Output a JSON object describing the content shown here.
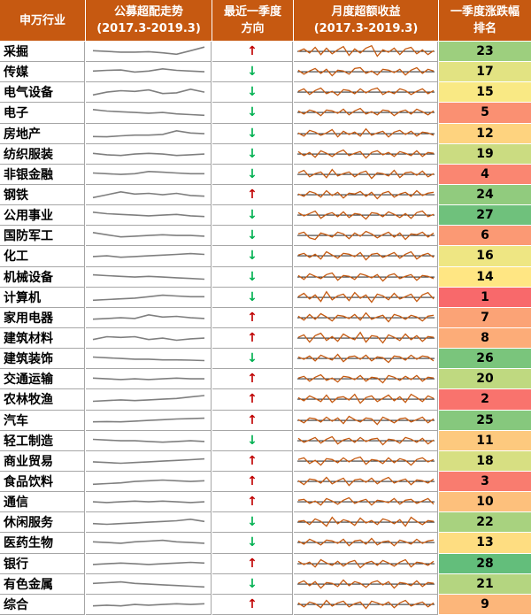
{
  "header": {
    "col_industry": "申万行业",
    "col_trend_line1": "公募超配走势",
    "col_trend_line2": "(2017.3-2019.3)",
    "col_dir_line1": "最近一季度",
    "col_dir_line2": "方向",
    "col_excess_line1": "月度超额收益",
    "col_excess_line2": "(2017.3-2019.3)",
    "col_rank_line1": "一季度涨跌幅",
    "col_rank_line2": "排名"
  },
  "colors": {
    "header_bg": "#c65911",
    "up_arrow": "#c00000",
    "down_arrow": "#00b050",
    "trend_line": "#7f7f7f",
    "excess_line": "#c55a11",
    "rank_best": "#63be7b",
    "rank_mid": "#ffeb84",
    "rank_worst": "#f8696b"
  },
  "chart_data": {
    "type": "table",
    "arrows": {
      "up": "↑",
      "down": "↓"
    },
    "rank_range": [
      1,
      28
    ],
    "rows": [
      {
        "name": "采掘",
        "dir": "up",
        "rank": "23",
        "trend": [
          0.55,
          0.5,
          0.45,
          0.45,
          0.48,
          0.4,
          0.3,
          0.55,
          0.8
        ],
        "excess": [
          0.0,
          0.3,
          -0.2,
          0.5,
          -0.4,
          0.4,
          -0.3,
          0.2,
          0.6,
          -0.5,
          0.3,
          -0.2,
          0.4,
          0.7,
          -0.6,
          0.2,
          -0.1,
          0.4,
          -0.4,
          0.3,
          0.5,
          -0.3,
          0.2,
          -0.4,
          0.1
        ]
      },
      {
        "name": "传媒",
        "dir": "down",
        "rank": "17",
        "trend": [
          0.55,
          0.6,
          0.62,
          0.48,
          0.55,
          0.7,
          0.6,
          0.55,
          0.5
        ],
        "excess": [
          0.2,
          -0.3,
          0.1,
          0.4,
          -0.2,
          0.3,
          -0.5,
          0.2,
          0.1,
          -0.3,
          0.4,
          0.5,
          -0.2,
          0.1,
          -0.4,
          0.3,
          0.2,
          -0.1,
          0.3,
          -0.4,
          0.2,
          0.5,
          -0.2,
          0.3,
          0.1
        ]
      },
      {
        "name": "电气设备",
        "dir": "down",
        "rank": "15",
        "trend": [
          0.3,
          0.5,
          0.6,
          0.55,
          0.65,
          0.4,
          0.45,
          0.7,
          0.5
        ],
        "excess": [
          0.1,
          0.4,
          -0.3,
          0.2,
          0.5,
          -0.2,
          0.1,
          -0.4,
          0.3,
          0.2,
          -0.2,
          0.4,
          -0.1,
          0.3,
          0.5,
          -0.3,
          0.1,
          -0.2,
          0.4,
          0.2,
          -0.3,
          0.1,
          0.4,
          -0.2,
          0.2
        ]
      },
      {
        "name": "电子",
        "dir": "down",
        "rank": "5",
        "trend": [
          0.7,
          0.6,
          0.55,
          0.5,
          0.45,
          0.5,
          0.4,
          0.35,
          0.3
        ],
        "excess": [
          0.2,
          -0.2,
          0.3,
          0.1,
          -0.4,
          0.3,
          0.2,
          -0.1,
          0.4,
          -0.3,
          0.2,
          0.5,
          -0.2,
          0.1,
          -0.3,
          0.3,
          0.2,
          -0.4,
          0.1,
          0.3,
          -0.2,
          0.4,
          0.1,
          -0.3,
          0.2
        ]
      },
      {
        "name": "房地产",
        "dir": "down",
        "rank": "12",
        "trend": [
          0.3,
          0.28,
          0.35,
          0.4,
          0.4,
          0.45,
          0.7,
          0.55,
          0.5
        ],
        "excess": [
          0.1,
          -0.3,
          0.4,
          0.2,
          -0.2,
          0.1,
          0.5,
          -0.4,
          0.3,
          -0.1,
          0.2,
          -0.3,
          0.6,
          -0.2,
          0.1,
          0.3,
          -0.4,
          0.2,
          0.4,
          -0.1,
          0.3,
          -0.3,
          0.2,
          0.1,
          -0.2
        ]
      },
      {
        "name": "纺织服装",
        "dir": "down",
        "rank": "19",
        "trend": [
          0.55,
          0.45,
          0.4,
          0.5,
          0.55,
          0.5,
          0.4,
          0.45,
          0.5
        ],
        "excess": [
          0.3,
          -0.2,
          0.2,
          -0.4,
          0.4,
          0.1,
          -0.3,
          0.2,
          0.5,
          -0.2,
          0.1,
          0.3,
          -0.5,
          0.2,
          0.4,
          -0.1,
          0.2,
          -0.3,
          0.3,
          0.1,
          -0.2,
          0.4,
          -0.3,
          0.2,
          0.1
        ]
      },
      {
        "name": "非银金融",
        "dir": "down",
        "rank": "4",
        "trend": [
          0.6,
          0.55,
          0.5,
          0.55,
          0.7,
          0.65,
          0.6,
          0.55,
          0.55
        ],
        "excess": [
          0.2,
          0.5,
          -0.3,
          0.1,
          0.3,
          -0.4,
          0.6,
          -0.2,
          0.1,
          0.3,
          -0.3,
          0.2,
          0.4,
          -0.5,
          0.2,
          0.1,
          -0.2,
          0.5,
          -0.4,
          0.2,
          0.3,
          -0.1,
          0.4,
          -0.3,
          0.1
        ]
      },
      {
        "name": "钢铁",
        "dir": "up",
        "rank": "24",
        "trend": [
          0.3,
          0.5,
          0.7,
          0.55,
          0.6,
          0.5,
          0.6,
          0.45,
          0.4
        ],
        "excess": [
          0.1,
          -0.2,
          0.4,
          0.2,
          -0.3,
          0.5,
          -0.1,
          0.3,
          -0.4,
          0.2,
          0.1,
          0.4,
          -0.2,
          0.3,
          -0.5,
          0.2,
          0.4,
          -0.3,
          0.1,
          0.3,
          -0.2,
          0.5,
          -0.1,
          0.2,
          0.3
        ]
      },
      {
        "name": "公用事业",
        "dir": "down",
        "rank": "27",
        "trend": [
          0.7,
          0.6,
          0.55,
          0.5,
          0.45,
          0.5,
          0.55,
          0.45,
          0.4
        ],
        "excess": [
          0.3,
          -0.1,
          0.2,
          0.5,
          -0.4,
          0.1,
          0.3,
          -0.2,
          0.4,
          -0.3,
          0.2,
          0.1,
          -0.5,
          0.3,
          0.2,
          -0.2,
          0.4,
          0.1,
          -0.3,
          0.2,
          -0.4,
          0.3,
          0.5,
          -0.2,
          0.1
        ]
      },
      {
        "name": "国防军工",
        "dir": "down",
        "rank": "6",
        "trend": [
          0.7,
          0.55,
          0.4,
          0.45,
          0.5,
          0.55,
          0.5,
          0.5,
          0.45
        ],
        "excess": [
          0.2,
          0.4,
          -0.3,
          -0.5,
          0.3,
          0.1,
          -0.2,
          0.4,
          0.2,
          -0.4,
          0.3,
          -0.1,
          0.5,
          0.2,
          -0.3,
          0.1,
          0.4,
          -0.2,
          0.3,
          -0.5,
          0.2,
          0.1,
          0.4,
          -0.2,
          0.3
        ]
      },
      {
        "name": "化工",
        "dir": "down",
        "rank": "16",
        "trend": [
          0.45,
          0.5,
          0.4,
          0.45,
          0.5,
          0.55,
          0.6,
          0.65,
          0.6
        ],
        "excess": [
          0.1,
          0.3,
          -0.2,
          0.2,
          -0.4,
          0.5,
          0.1,
          -0.3,
          0.3,
          0.2,
          -0.1,
          0.4,
          -0.5,
          0.2,
          0.3,
          -0.2,
          0.1,
          0.4,
          -0.3,
          0.2,
          0.5,
          -0.4,
          0.1,
          0.3,
          -0.2
        ]
      },
      {
        "name": "机械设备",
        "dir": "down",
        "rank": "14",
        "trend": [
          0.65,
          0.6,
          0.55,
          0.5,
          0.55,
          0.5,
          0.45,
          0.4,
          0.35
        ],
        "excess": [
          0.2,
          -0.3,
          0.4,
          0.1,
          -0.2,
          0.3,
          0.5,
          -0.4,
          0.2,
          0.1,
          -0.3,
          0.4,
          0.2,
          -0.1,
          0.3,
          -0.5,
          0.2,
          0.4,
          -0.2,
          0.1,
          0.3,
          -0.4,
          0.2,
          0.1,
          -0.2
        ]
      },
      {
        "name": "计算机",
        "dir": "down",
        "rank": "1",
        "trend": [
          0.3,
          0.35,
          0.4,
          0.45,
          0.55,
          0.65,
          0.6,
          0.55,
          0.55
        ],
        "excess": [
          0.1,
          0.5,
          -0.2,
          0.3,
          -0.5,
          0.7,
          -0.3,
          0.2,
          0.4,
          -0.4,
          0.6,
          -0.1,
          0.3,
          -0.6,
          0.4,
          0.2,
          -0.3,
          0.5,
          -0.2,
          0.1,
          0.4,
          -0.5,
          0.3,
          0.6,
          -0.2
        ]
      },
      {
        "name": "家用电器",
        "dir": "up",
        "rank": "7",
        "trend": [
          0.4,
          0.45,
          0.5,
          0.45,
          0.7,
          0.55,
          0.6,
          0.5,
          0.45
        ],
        "excess": [
          0.2,
          -0.3,
          0.4,
          -0.2,
          0.5,
          0.1,
          -0.4,
          0.3,
          0.2,
          -0.1,
          0.4,
          -0.3,
          0.6,
          -0.2,
          0.1,
          0.3,
          -0.5,
          0.4,
          0.2,
          -0.2,
          0.3,
          0.1,
          -0.4,
          0.2,
          0.3
        ]
      },
      {
        "name": "建筑材料",
        "dir": "up",
        "rank": "8",
        "trend": [
          0.4,
          0.6,
          0.55,
          0.6,
          0.4,
          0.5,
          0.35,
          0.45,
          0.5
        ],
        "excess": [
          0.1,
          0.4,
          -0.5,
          0.3,
          0.6,
          -0.3,
          0.2,
          -0.4,
          0.5,
          0.1,
          -0.2,
          0.7,
          -0.5,
          0.3,
          0.2,
          -0.6,
          0.4,
          0.1,
          -0.3,
          0.5,
          -0.2,
          0.3,
          -0.4,
          0.2,
          0.1
        ]
      },
      {
        "name": "建筑装饰",
        "dir": "down",
        "rank": "26",
        "trend": [
          0.6,
          0.55,
          0.5,
          0.45,
          0.45,
          0.4,
          0.4,
          0.38,
          0.35
        ],
        "excess": [
          0.2,
          -0.1,
          0.3,
          -0.3,
          0.4,
          0.1,
          -0.2,
          0.5,
          -0.4,
          0.2,
          0.3,
          -0.1,
          0.4,
          -0.3,
          0.2,
          0.1,
          -0.5,
          0.3,
          0.2,
          -0.2,
          0.4,
          -0.1,
          0.3,
          0.2,
          -0.3
        ]
      },
      {
        "name": "交通运输",
        "dir": "up",
        "rank": "20",
        "trend": [
          0.55,
          0.5,
          0.45,
          0.5,
          0.45,
          0.5,
          0.55,
          0.5,
          0.5
        ],
        "excess": [
          0.1,
          0.3,
          -0.3,
          0.2,
          0.5,
          -0.2,
          0.1,
          -0.4,
          0.3,
          0.2,
          -0.1,
          0.4,
          -0.3,
          0.2,
          0.1,
          -0.5,
          0.4,
          0.2,
          -0.2,
          0.3,
          -0.1,
          0.4,
          -0.3,
          0.2,
          0.1
        ]
      },
      {
        "name": "农林牧渔",
        "dir": "up",
        "rank": "2",
        "trend": [
          0.35,
          0.4,
          0.45,
          0.4,
          0.45,
          0.5,
          0.55,
          0.65,
          0.75
        ],
        "excess": [
          0.2,
          -0.2,
          0.4,
          0.1,
          -0.3,
          0.5,
          -0.4,
          0.2,
          0.3,
          -0.1,
          0.6,
          -0.5,
          0.2,
          0.4,
          -0.3,
          0.1,
          0.5,
          -0.2,
          0.3,
          -0.4,
          0.6,
          0.2,
          -0.3,
          0.4,
          0.1
        ]
      },
      {
        "name": "汽车",
        "dir": "up",
        "rank": "25",
        "trend": [
          0.4,
          0.42,
          0.4,
          0.45,
          0.5,
          0.55,
          0.6,
          0.62,
          0.65
        ],
        "excess": [
          0.1,
          -0.3,
          0.3,
          0.2,
          -0.2,
          0.4,
          -0.1,
          0.3,
          -0.4,
          0.5,
          0.1,
          -0.2,
          0.3,
          0.2,
          -0.5,
          0.4,
          0.1,
          -0.3,
          0.2,
          0.3,
          -0.2,
          0.1,
          0.4,
          -0.3,
          0.2
        ]
      },
      {
        "name": "轻工制造",
        "dir": "down",
        "rank": "11",
        "trend": [
          0.6,
          0.55,
          0.5,
          0.5,
          0.45,
          0.4,
          0.45,
          0.5,
          0.45
        ],
        "excess": [
          0.3,
          -0.2,
          0.1,
          0.4,
          -0.3,
          0.2,
          0.5,
          -0.4,
          0.1,
          0.3,
          -0.2,
          0.4,
          -0.1,
          0.2,
          0.3,
          -0.5,
          0.2,
          0.1,
          -0.3,
          0.4,
          0.2,
          -0.2,
          0.3,
          -0.4,
          0.1
        ]
      },
      {
        "name": "商业贸易",
        "dir": "up",
        "rank": "18",
        "trend": [
          0.45,
          0.4,
          0.35,
          0.4,
          0.45,
          0.5,
          0.55,
          0.6,
          0.65
        ],
        "excess": [
          0.2,
          0.4,
          -0.3,
          0.1,
          -0.5,
          0.3,
          0.2,
          -0.2,
          0.4,
          -0.1,
          0.3,
          0.5,
          -0.4,
          0.2,
          0.1,
          -0.3,
          0.4,
          -0.2,
          0.3,
          0.1,
          -0.5,
          0.2,
          0.4,
          -0.1,
          0.2
        ]
      },
      {
        "name": "食品饮料",
        "dir": "up",
        "rank": "3",
        "trend": [
          0.3,
          0.35,
          0.4,
          0.5,
          0.55,
          0.6,
          0.55,
          0.5,
          0.55
        ],
        "excess": [
          0.1,
          -0.4,
          0.3,
          0.2,
          -0.2,
          0.5,
          -0.3,
          0.1,
          0.4,
          -0.5,
          0.2,
          0.3,
          -0.1,
          0.4,
          -0.3,
          0.2,
          0.5,
          -0.2,
          0.1,
          0.3,
          -0.4,
          0.2,
          0.1,
          -0.2,
          0.3
        ]
      },
      {
        "name": "通信",
        "dir": "up",
        "rank": "10",
        "trend": [
          0.5,
          0.45,
          0.5,
          0.55,
          0.5,
          0.55,
          0.5,
          0.45,
          0.5
        ],
        "excess": [
          0.2,
          0.3,
          -0.2,
          0.1,
          -0.4,
          0.4,
          0.1,
          -0.3,
          0.2,
          0.5,
          -0.2,
          0.1,
          0.3,
          -0.4,
          0.2,
          0.1,
          -0.1,
          0.4,
          -0.3,
          0.2,
          0.3,
          -0.2,
          0.1,
          0.4,
          -0.3
        ]
      },
      {
        "name": "休闲服务",
        "dir": "down",
        "rank": "22",
        "trend": [
          0.4,
          0.35,
          0.4,
          0.45,
          0.5,
          0.55,
          0.6,
          0.7,
          0.55
        ],
        "excess": [
          0.1,
          0.2,
          -0.3,
          0.4,
          0.1,
          -0.5,
          0.6,
          -0.2,
          0.3,
          0.1,
          -0.4,
          0.5,
          -0.1,
          0.2,
          -0.3,
          0.4,
          0.2,
          -0.2,
          0.3,
          -0.5,
          0.6,
          0.1,
          -0.3,
          0.2,
          0.1
        ]
      },
      {
        "name": "医药生物",
        "dir": "down",
        "rank": "13",
        "trend": [
          0.55,
          0.5,
          0.45,
          0.55,
          0.6,
          0.65,
          0.55,
          0.5,
          0.45
        ],
        "excess": [
          0.2,
          -0.2,
          0.4,
          0.1,
          -0.3,
          0.3,
          0.2,
          -0.1,
          0.4,
          -0.4,
          0.2,
          0.3,
          -0.2,
          0.5,
          -0.3,
          0.1,
          0.2,
          -0.4,
          0.3,
          0.1,
          -0.2,
          0.4,
          -0.1,
          0.2,
          0.3
        ]
      },
      {
        "name": "银行",
        "dir": "up",
        "rank": "28",
        "trend": [
          0.45,
          0.5,
          0.55,
          0.5,
          0.45,
          0.5,
          0.55,
          0.6,
          0.55
        ],
        "excess": [
          0.3,
          -0.1,
          0.2,
          -0.4,
          0.5,
          0.1,
          -0.2,
          0.3,
          -0.3,
          0.2,
          0.4,
          -0.5,
          0.1,
          0.3,
          -0.2,
          0.4,
          0.1,
          -0.3,
          0.2,
          0.5,
          -0.4,
          0.2,
          0.1,
          -0.2,
          0.3
        ]
      },
      {
        "name": "有色金属",
        "dir": "down",
        "rank": "21",
        "trend": [
          0.55,
          0.6,
          0.65,
          0.55,
          0.5,
          0.45,
          0.4,
          0.35,
          0.3
        ],
        "excess": [
          0.1,
          0.4,
          -0.2,
          0.3,
          -0.5,
          0.2,
          0.1,
          -0.3,
          0.5,
          -0.2,
          0.3,
          0.1,
          -0.4,
          0.2,
          0.4,
          -0.1,
          0.3,
          -0.5,
          0.2,
          0.1,
          -0.2,
          0.4,
          -0.3,
          0.2,
          0.1
        ]
      },
      {
        "name": "综合",
        "dir": "up",
        "rank": "9",
        "trend": [
          0.4,
          0.45,
          0.4,
          0.5,
          0.45,
          0.5,
          0.55,
          0.5,
          0.55
        ],
        "excess": [
          0.2,
          -0.3,
          0.3,
          0.1,
          -0.4,
          0.5,
          -0.2,
          0.2,
          0.4,
          -0.3,
          0.1,
          0.3,
          -0.5,
          0.4,
          0.2,
          -0.1,
          0.3,
          -0.4,
          0.2,
          0.5,
          -0.2,
          0.1,
          0.3,
          -0.3,
          0.2
        ]
      }
    ]
  }
}
